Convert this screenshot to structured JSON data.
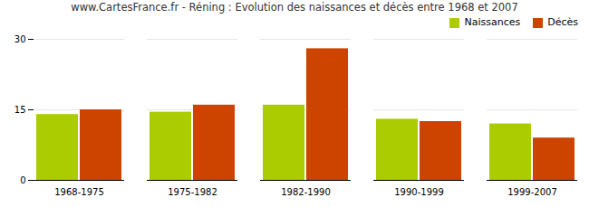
{
  "chart_data": {
    "type": "bar",
    "title": "www.CartesFrance.fr - Réning : Evolution des naissances et décès entre 1968 et 2007",
    "categories": [
      "1968-1975",
      "1975-1982",
      "1982-1990",
      "1990-1999",
      "1999-2007"
    ],
    "series": [
      {
        "name": "Naissances",
        "color": "#AACC00",
        "values": [
          14,
          14.5,
          16,
          13,
          12
        ]
      },
      {
        "name": "Décès",
        "color": "#CC4400",
        "values": [
          15,
          16,
          28,
          12.5,
          9
        ]
      }
    ],
    "ylim": [
      0,
      30
    ],
    "yticks": [
      0,
      15,
      30
    ],
    "grid": true,
    "legend": "upper right"
  }
}
